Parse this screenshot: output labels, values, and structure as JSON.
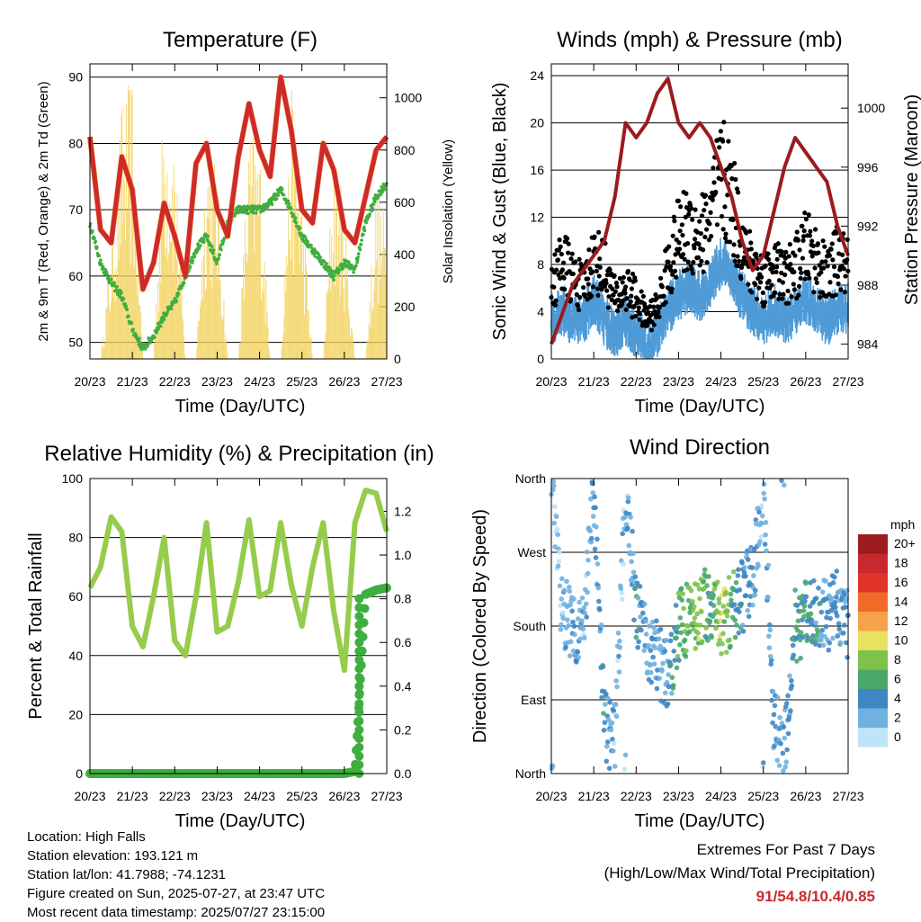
{
  "x_ticks": [
    "20/23",
    "21/23",
    "22/23",
    "23/23",
    "24/23",
    "25/23",
    "26/23",
    "27/23"
  ],
  "x_label": "Time (Day/UTC)",
  "temperature_panel": {
    "title": "Temperature (F)",
    "ylabel_left": "2m & 9m T (Red, Orange) & 2m Td (Green)",
    "ylabel_right": "Solar Insolation (Yellow)",
    "left_ticks": [
      "50",
      "60",
      "70",
      "80",
      "90"
    ],
    "right_ticks": [
      "0",
      "200",
      "400",
      "600",
      "800",
      "1000"
    ]
  },
  "wind_panel": {
    "title": "Winds (mph) & Pressure (mb)",
    "ylabel_left": "Sonic Wind & Gust (Blue, Black)",
    "ylabel_right": "Station Pressure (Maroon)",
    "left_ticks": [
      "0",
      "4",
      "8",
      "12",
      "16",
      "20",
      "24"
    ],
    "right_ticks": [
      "984",
      "988",
      "992",
      "996",
      "1000"
    ]
  },
  "rh_panel": {
    "title": "Relative Humidity (%) & Precipitation (in)",
    "ylabel_left": "Percent & Total Rainfall",
    "left_ticks": [
      "0",
      "20",
      "40",
      "60",
      "80",
      "100"
    ],
    "right_ticks": [
      "0.0",
      "0.2",
      "0.4",
      "0.6",
      "0.8",
      "1.0",
      "1.2"
    ]
  },
  "direction_panel": {
    "title": "Wind Direction",
    "ylabel": "Direction (Colored By Speed)",
    "dir_ticks": [
      "North",
      "East",
      "South",
      "West",
      "North"
    ],
    "legend_unit": "mph",
    "legend_labels": [
      "20+",
      "18",
      "16",
      "14",
      "12",
      "10",
      "8",
      "6",
      "4",
      "2",
      "0"
    ],
    "legend_colors": [
      "#9b1b1e",
      "#c62a2f",
      "#e0342b",
      "#f06b2a",
      "#f7a24a",
      "#e9e160",
      "#7fc24b",
      "#4aa86b",
      "#3f86c4",
      "#6fb1e0",
      "#bfe3f7"
    ]
  },
  "info": {
    "location": "Location: High Falls",
    "elevation": "Station elevation: 193.121 m",
    "latlon": "Station lat/lon: 41.7988; -74.1231",
    "created": "Figure created on Sun, 2025-07-27, at 23:47 UTC",
    "recent": "Most recent data timestamp: 2025/07/27 23:15:00"
  },
  "extremes": {
    "line1": "Extremes For Past 7 Days",
    "line2": "(High/Low/Max Wind/Total Precipitation)",
    "values": "91/54.8/10.4/0.85"
  },
  "chart_data": [
    {
      "type": "line",
      "title": "Temperature (F)",
      "xlabel": "Time (Day/UTC)",
      "ylabel": "2m & 9m T (Red, Orange) & 2m Td (Green)",
      "ylabel_right": "Solar Insolation (Yellow)",
      "x": [
        0,
        0.25,
        0.5,
        0.75,
        1,
        1.25,
        1.5,
        1.75,
        2,
        2.25,
        2.5,
        2.75,
        3,
        3.25,
        3.5,
        3.75,
        4,
        4.25,
        4.5,
        4.75,
        5,
        5.25,
        5.5,
        5.75,
        6,
        6.25,
        6.5,
        6.75,
        7
      ],
      "ylim": [
        47.5,
        92
      ],
      "ylim_right": [
        0,
        1130
      ],
      "series": [
        {
          "name": "2m T",
          "values": [
            81,
            67,
            65,
            78,
            73,
            58,
            62,
            71,
            66,
            60,
            77,
            80,
            70,
            66,
            78,
            86,
            79,
            75,
            90,
            82,
            70,
            68,
            80,
            76,
            67,
            65,
            72,
            79,
            81
          ]
        },
        {
          "name": "2m Td",
          "values": [
            68,
            62,
            59,
            57,
            52,
            49,
            51,
            54,
            56,
            60,
            64,
            66,
            62,
            68,
            70,
            70,
            70,
            71,
            73,
            70,
            66,
            64,
            62,
            60,
            62,
            61,
            68,
            72,
            74
          ]
        },
        {
          "name": "Solar Insolation",
          "values": [
            0,
            0,
            450,
            1000,
            1100,
            0,
            0,
            1090,
            900,
            0,
            0,
            900,
            750,
            0,
            0,
            900,
            880,
            0,
            0,
            1050,
            700,
            0,
            0,
            850,
            600,
            0,
            0,
            700,
            550
          ]
        }
      ]
    },
    {
      "type": "line",
      "title": "Winds (mph) & Pressure (mb)",
      "xlabel": "Time (Day/UTC)",
      "ylabel": "Sonic Wind & Gust (Blue, Black)",
      "ylabel_right": "Station Pressure (Maroon)",
      "x": [
        0,
        0.25,
        0.5,
        0.75,
        1,
        1.25,
        1.5,
        1.75,
        2,
        2.25,
        2.5,
        2.75,
        3,
        3.25,
        3.5,
        3.75,
        4,
        4.25,
        4.5,
        4.75,
        5,
        5.25,
        5.5,
        5.75,
        6,
        6.25,
        6.5,
        6.75,
        7
      ],
      "ylim": [
        0,
        25
      ],
      "ylim_right": [
        983,
        1003
      ],
      "series": [
        {
          "name": "Station Pressure",
          "values": [
            984,
            986,
            988,
            989,
            990,
            991,
            994,
            999,
            998,
            999,
            1001,
            1002,
            999,
            998,
            999,
            998,
            996,
            994,
            991,
            989,
            990,
            993,
            996,
            998,
            997,
            996,
            995,
            992,
            990
          ]
        },
        {
          "name": "Sonic Wind",
          "values": [
            3,
            4,
            3,
            3,
            5,
            3,
            2,
            3,
            2,
            1,
            2,
            4,
            5,
            6,
            5,
            6,
            8,
            7,
            5,
            4,
            3,
            4,
            3,
            4,
            5,
            4,
            3,
            4,
            4
          ]
        },
        {
          "name": "Gust",
          "values": [
            7,
            10,
            8,
            7,
            10,
            9,
            6,
            7,
            6,
            4,
            5,
            9,
            12,
            13,
            12,
            14,
            18,
            16,
            11,
            9,
            8,
            9,
            8,
            9,
            11,
            10,
            8,
            10,
            9
          ]
        }
      ]
    },
    {
      "type": "line",
      "title": "Relative Humidity (%) & Precipitation (in)",
      "xlabel": "Time (Day/UTC)",
      "ylabel": "Percent & Total Rainfall",
      "x": [
        0,
        0.25,
        0.5,
        0.75,
        1,
        1.25,
        1.5,
        1.75,
        2,
        2.25,
        2.5,
        2.75,
        3,
        3.25,
        3.5,
        3.75,
        4,
        4.25,
        4.5,
        4.75,
        5,
        5.25,
        5.5,
        5.75,
        6,
        6.25,
        6.5,
        6.75,
        7
      ],
      "ylim": [
        0,
        100
      ],
      "ylim_right": [
        0,
        1.35
      ],
      "series": [
        {
          "name": "Relative Humidity",
          "values": [
            63,
            70,
            87,
            82,
            50,
            43,
            60,
            80,
            45,
            40,
            60,
            85,
            48,
            50,
            65,
            86,
            60,
            62,
            85,
            64,
            50,
            70,
            85,
            55,
            35,
            85,
            96,
            95,
            82
          ]
        },
        {
          "name": "Total Rainfall",
          "values": [
            0,
            0,
            0,
            0,
            0,
            0,
            0,
            0,
            0,
            0,
            0,
            0,
            0,
            0,
            0,
            0,
            0,
            0,
            0,
            0,
            0,
            0,
            0,
            0,
            0,
            0.01,
            0.82,
            0.84,
            0.85
          ]
        }
      ]
    },
    {
      "type": "scatter",
      "title": "Wind Direction",
      "xlabel": "Time (Day/UTC)",
      "ylabel": "Direction (Colored By Speed)",
      "x": [
        0,
        0.25,
        0.5,
        0.75,
        1,
        1.25,
        1.5,
        1.75,
        2,
        2.25,
        2.5,
        2.75,
        3,
        3.25,
        3.5,
        3.75,
        4,
        4.25,
        4.5,
        4.75,
        5,
        5.25,
        5.5,
        5.75,
        6,
        6.25,
        6.5,
        6.75,
        7
      ],
      "ylim": [
        0,
        360
      ],
      "direction_deg": [
        355,
        200,
        185,
        170,
        340,
        60,
        40,
        350,
        200,
        160,
        140,
        120,
        180,
        190,
        200,
        210,
        180,
        200,
        215,
        240,
        350,
        60,
        30,
        180,
        190,
        200,
        190,
        210,
        180
      ],
      "speed_mph": [
        1,
        2,
        3,
        2,
        3,
        4,
        2,
        2,
        4,
        3,
        2,
        3,
        6,
        7,
        8,
        5,
        9,
        6,
        4,
        3,
        2,
        3,
        3,
        5,
        6,
        4,
        3,
        4,
        3
      ]
    }
  ]
}
